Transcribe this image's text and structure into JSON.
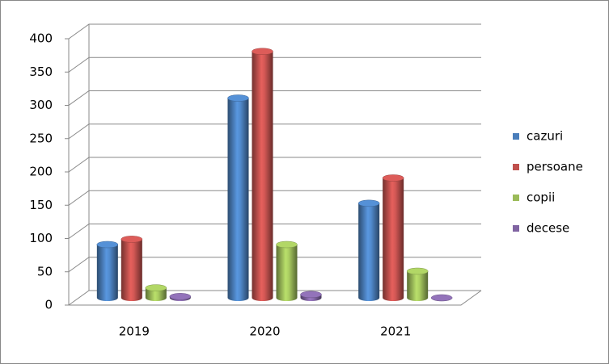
{
  "chart_data": {
    "type": "bar3d",
    "categories": [
      "2019",
      "2020",
      "2021"
    ],
    "series": [
      {
        "name": "cazuri",
        "color": "#4a7ebb",
        "values": [
          80,
          300,
          142
        ]
      },
      {
        "name": "persoane",
        "color": "#c0504d",
        "values": [
          88,
          370,
          180
        ]
      },
      {
        "name": "copii",
        "color": "#9bbb59",
        "values": [
          15,
          80,
          40
        ]
      },
      {
        "name": "decese",
        "color": "#8064a2",
        "values": [
          2,
          5,
          0
        ]
      }
    ],
    "ylim": [
      0,
      400
    ],
    "yticks": [
      0,
      50,
      100,
      150,
      200,
      250,
      300,
      350,
      400
    ],
    "grid": true,
    "legend": "right"
  }
}
